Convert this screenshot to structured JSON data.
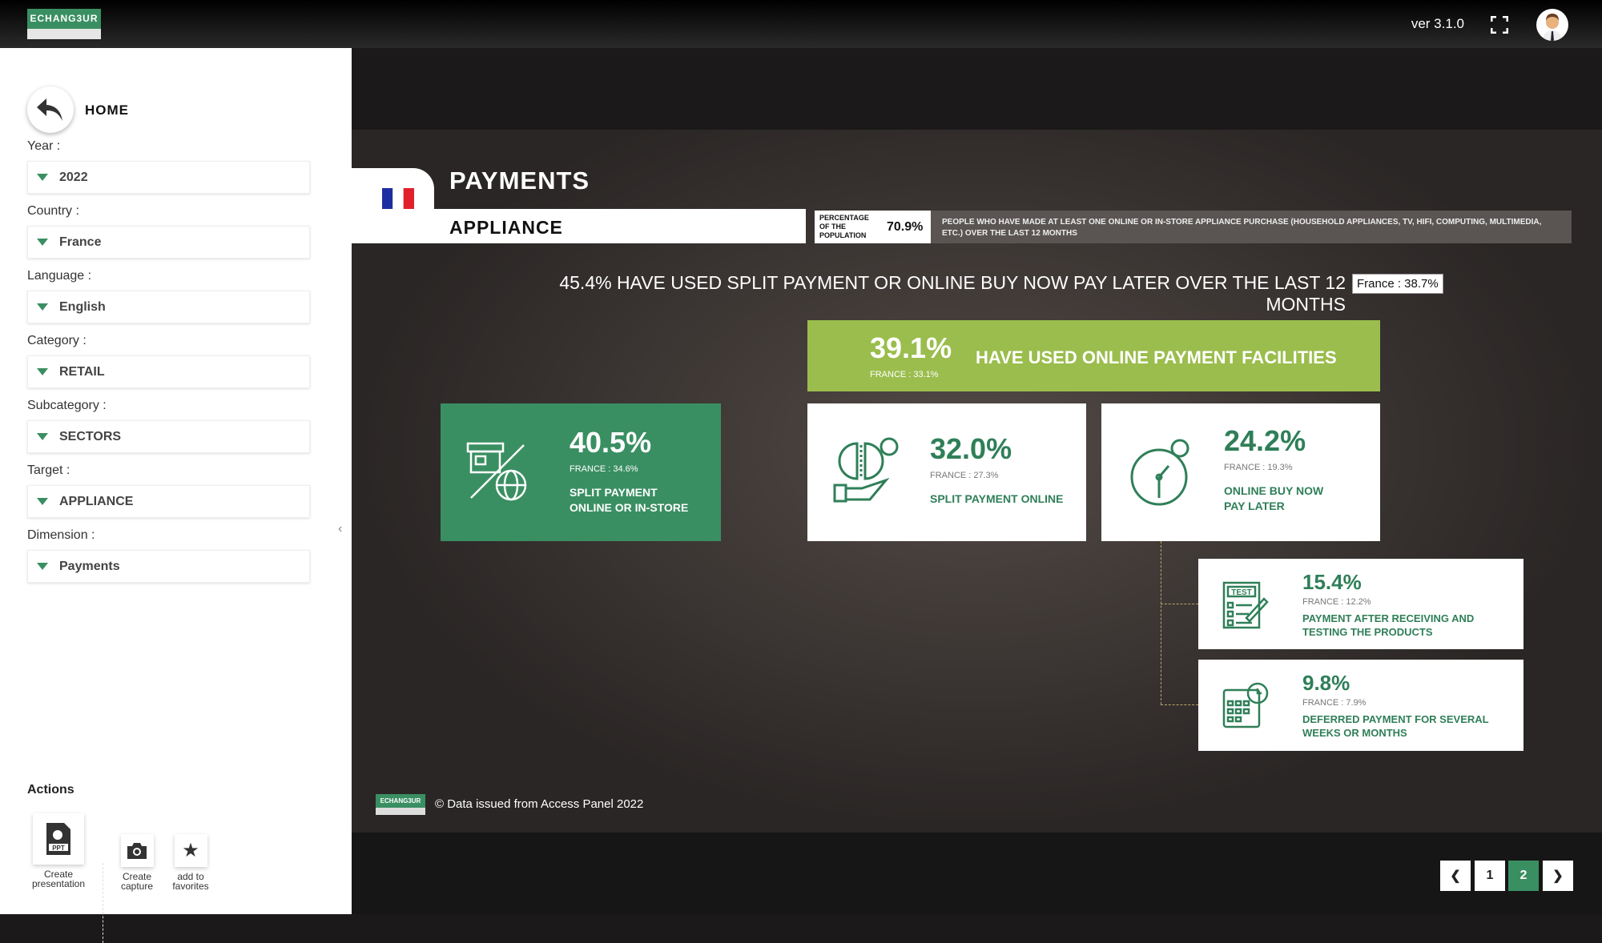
{
  "app": {
    "logo_text": "ECHANG3UR",
    "version": "ver 3.1.0",
    "accent": "#3a8f62"
  },
  "sidebar": {
    "home_label": "HOME",
    "filters": [
      {
        "label": "Year :",
        "value": "2022"
      },
      {
        "label": "Country :",
        "value": "France"
      },
      {
        "label": "Language :",
        "value": "English"
      },
      {
        "label": "Category :",
        "value": "RETAIL"
      },
      {
        "label": "Subcategory :",
        "value": "SECTORS"
      },
      {
        "label": "Target :",
        "value": "APPLIANCE"
      },
      {
        "label": "Dimension :",
        "value": "Payments"
      }
    ],
    "actions_title": "Actions",
    "actions": [
      {
        "label": "Create presentation",
        "icon": "ppt-icon"
      },
      {
        "label": "Create capture",
        "icon": "camera-icon"
      },
      {
        "label": "add to favorites",
        "icon": "star-icon"
      }
    ]
  },
  "slide": {
    "title": "PAYMENTS",
    "target": "APPLIANCE",
    "country_flag": "france",
    "population": {
      "label": "PERCENTAGE OF THE POPULATION",
      "value": "70.9%"
    },
    "description": "PEOPLE WHO HAVE MADE AT LEAST ONE ONLINE OR IN-STORE APPLIANCE PURCHASE (HOUSEHOLD APPLIANCES, TV, HIFI, COMPUTING, MULTIMEDIA, ETC.) OVER THE LAST 12 MONTHS",
    "headline": "45.4% HAVE USED SPLIT PAYMENT OR ONLINE BUY NOW PAY LATER OVER THE LAST 12 MONTHS",
    "headline_france": "France : 38.7%",
    "online_facilities": {
      "value": "39.1%",
      "france": "FRANCE : 33.1%",
      "label": "HAVE USED ONLINE PAYMENT FACILITIES"
    },
    "split": {
      "value": "40.5%",
      "france": "FRANCE : 34.6%",
      "label": "SPLIT PAYMENT ONLINE OR IN-STORE"
    },
    "cards": [
      {
        "value": "32.0%",
        "france": "FRANCE : 27.3%",
        "label": "SPLIT PAYMENT ONLINE"
      },
      {
        "value": "24.2%",
        "france": "FRANCE : 19.3%",
        "label": "ONLINE BUY NOW PAY LATER"
      },
      {
        "value": "15.4%",
        "france": "FRANCE : 12.2%",
        "label": "PAYMENT AFTER RECEIVING AND TESTING THE PRODUCTS",
        "icon_text": "TEST"
      },
      {
        "value": "9.8%",
        "france": "FRANCE : 7.9%",
        "label": "DEFERRED PAYMENT FOR SEVERAL WEEKS OR MONTHS"
      }
    ],
    "footer": "© Data issued from Access Panel 2022"
  },
  "pagination": {
    "pages": [
      "1",
      "2"
    ],
    "current": "2"
  }
}
